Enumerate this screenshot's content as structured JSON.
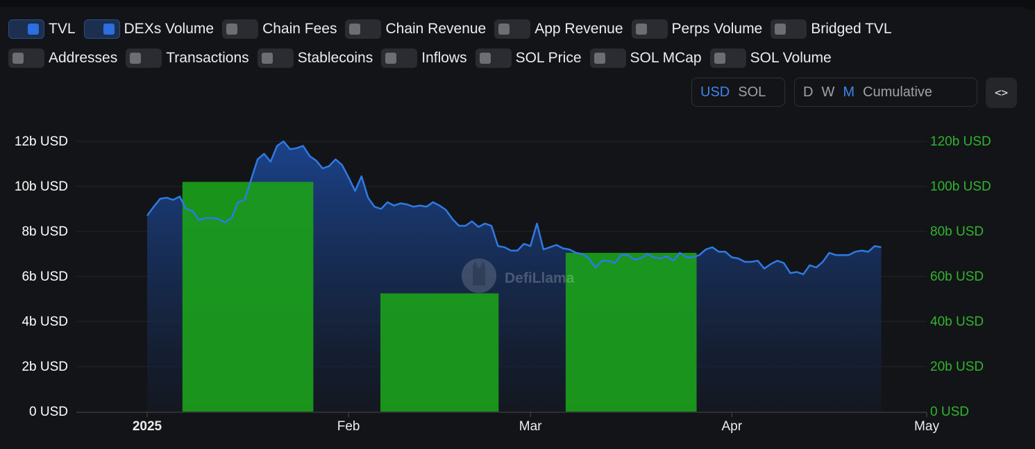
{
  "toggles": {
    "row1": [
      {
        "label": "TVL",
        "on": true
      },
      {
        "label": "DEXs Volume",
        "on": true
      },
      {
        "label": "Chain Fees",
        "on": false
      },
      {
        "label": "Chain Revenue",
        "on": false
      },
      {
        "label": "App Revenue",
        "on": false
      },
      {
        "label": "Perps Volume",
        "on": false
      },
      {
        "label": "Bridged TVL",
        "on": false
      }
    ],
    "row2": [
      {
        "label": "Addresses",
        "on": false
      },
      {
        "label": "Transactions",
        "on": false
      },
      {
        "label": "Stablecoins",
        "on": false
      },
      {
        "label": "Inflows",
        "on": false
      },
      {
        "label": "SOL Price",
        "on": false
      },
      {
        "label": "SOL MCap",
        "on": false
      },
      {
        "label": "SOL Volume",
        "on": false
      }
    ]
  },
  "currency": {
    "options": [
      "USD",
      "SOL"
    ],
    "selected": "USD"
  },
  "period": {
    "options": [
      "D",
      "W",
      "M",
      "Cumulative"
    ],
    "selected": "M"
  },
  "embed_icon": "code-icon",
  "embed_label": "<>",
  "watermark": "DefiLlama",
  "colors": {
    "tvl_line": "#2f7ae5",
    "dex_bar": "#1b9e1b",
    "left_axis": "#ffffff",
    "right_axis": "#2fb52f"
  },
  "chart_data": {
    "type": "bar+area",
    "x_axis": {
      "labels": [
        "2025",
        "Feb",
        "Mar",
        "Apr",
        "May"
      ],
      "min": "2025-01-01",
      "max": "2025-05-01"
    },
    "y_left": {
      "label": "",
      "ticks": [
        "0 USD",
        "2b USD",
        "4b USD",
        "6b USD",
        "8b USD",
        "10b USD",
        "12b USD"
      ],
      "range": [
        0,
        12
      ]
    },
    "y_right": {
      "label": "",
      "ticks": [
        "0 USD",
        "20b USD",
        "40b USD",
        "60b USD",
        "80b USD",
        "100b USD",
        "120b USD"
      ],
      "range": [
        0,
        120
      ]
    },
    "grid": true,
    "series": [
      {
        "name": "TVL",
        "type": "area",
        "axis": "left",
        "unit": "b USD",
        "x": [
          "2025-01-01",
          "2025-01-02",
          "2025-01-03",
          "2025-01-04",
          "2025-01-05",
          "2025-01-06",
          "2025-01-07",
          "2025-01-08",
          "2025-01-09",
          "2025-01-10",
          "2025-01-11",
          "2025-01-12",
          "2025-01-13",
          "2025-01-14",
          "2025-01-15",
          "2025-01-16",
          "2025-01-17",
          "2025-01-18",
          "2025-01-19",
          "2025-01-20",
          "2025-01-21",
          "2025-01-22",
          "2025-01-23",
          "2025-01-24",
          "2025-01-25",
          "2025-01-26",
          "2025-01-27",
          "2025-01-28",
          "2025-01-29",
          "2025-01-30",
          "2025-01-31",
          "2025-02-01",
          "2025-02-02",
          "2025-02-03",
          "2025-02-04",
          "2025-02-05",
          "2025-02-06",
          "2025-02-07",
          "2025-02-08",
          "2025-02-09",
          "2025-02-10",
          "2025-02-11",
          "2025-02-12",
          "2025-02-13",
          "2025-02-14",
          "2025-02-15",
          "2025-02-16",
          "2025-02-17",
          "2025-02-18",
          "2025-02-19",
          "2025-02-20",
          "2025-02-21",
          "2025-02-22",
          "2025-02-23",
          "2025-02-24",
          "2025-02-25",
          "2025-02-26",
          "2025-02-27",
          "2025-02-28",
          "2025-03-01",
          "2025-03-02",
          "2025-03-03",
          "2025-03-04",
          "2025-03-05",
          "2025-03-06",
          "2025-03-07",
          "2025-03-08",
          "2025-03-09",
          "2025-03-10",
          "2025-03-11",
          "2025-03-12",
          "2025-03-13",
          "2025-03-14",
          "2025-03-15",
          "2025-03-16",
          "2025-03-17",
          "2025-03-18",
          "2025-03-19",
          "2025-03-20",
          "2025-03-21",
          "2025-03-22",
          "2025-03-23",
          "2025-03-24",
          "2025-03-25",
          "2025-03-26",
          "2025-03-27",
          "2025-03-28",
          "2025-03-29",
          "2025-03-30",
          "2025-03-31",
          "2025-04-01",
          "2025-04-02",
          "2025-04-03",
          "2025-04-04",
          "2025-04-05",
          "2025-04-06",
          "2025-04-07",
          "2025-04-08",
          "2025-04-09",
          "2025-04-10",
          "2025-04-11",
          "2025-04-12",
          "2025-04-13",
          "2025-04-14",
          "2025-04-15",
          "2025-04-16",
          "2025-04-17",
          "2025-04-18",
          "2025-04-19",
          "2025-04-20",
          "2025-04-21",
          "2025-04-22",
          "2025-04-23",
          "2025-04-24"
        ],
        "values": [
          8.7,
          9.1,
          9.45,
          9.5,
          9.4,
          9.55,
          9.0,
          8.9,
          8.5,
          8.6,
          8.6,
          8.55,
          8.4,
          8.6,
          9.3,
          9.4,
          10.3,
          11.2,
          11.45,
          11.1,
          11.8,
          12.0,
          11.65,
          11.7,
          11.8,
          11.35,
          11.15,
          10.8,
          10.9,
          11.2,
          10.95,
          10.4,
          9.8,
          10.45,
          9.5,
          9.1,
          9.0,
          9.3,
          9.15,
          9.25,
          9.2,
          9.1,
          9.15,
          9.1,
          9.3,
          9.15,
          8.95,
          8.55,
          8.25,
          8.25,
          8.45,
          8.2,
          8.35,
          8.25,
          7.35,
          7.3,
          7.15,
          7.15,
          7.45,
          7.35,
          8.35,
          7.2,
          7.3,
          7.4,
          7.25,
          7.2,
          7.05,
          7.0,
          6.8,
          6.4,
          6.7,
          6.7,
          6.6,
          6.95,
          6.95,
          6.75,
          6.8,
          7.0,
          6.85,
          6.8,
          6.9,
          6.7,
          7.05,
          6.85,
          6.85,
          6.95,
          7.2,
          7.3,
          7.1,
          7.1,
          6.85,
          6.8,
          6.65,
          6.65,
          6.7,
          6.35,
          6.55,
          6.7,
          6.6,
          6.15,
          6.2,
          6.1,
          6.5,
          6.4,
          6.65,
          7.05,
          6.95,
          6.95,
          6.95,
          7.1,
          7.15,
          7.1,
          7.35,
          7.3
        ]
      },
      {
        "name": "DEXs Volume",
        "type": "bar",
        "axis": "right",
        "unit": "b USD",
        "x": [
          "2025-01",
          "2025-02",
          "2025-03"
        ],
        "values": [
          102,
          52.5,
          70.5
        ]
      }
    ]
  }
}
